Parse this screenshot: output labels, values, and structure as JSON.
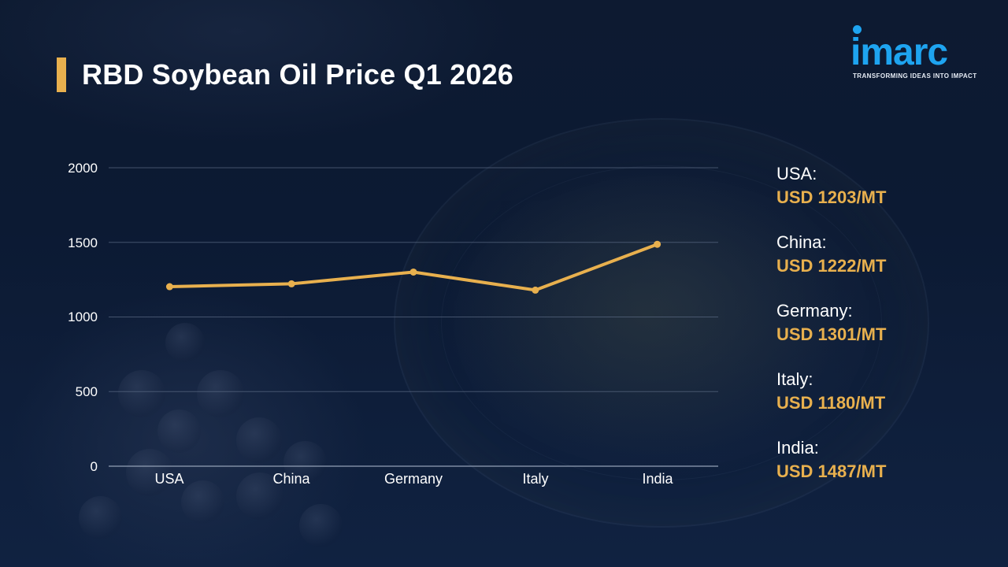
{
  "title": "RBD Soybean Oil Price Q1 2026",
  "logo": {
    "wordmark": "imarc",
    "tagline": "TRANSFORMING IDEAS INTO IMPACT"
  },
  "colors": {
    "background": "#0f1d35",
    "accent": "#e8b04e",
    "line": "#e8b04e",
    "logo": "#1ea4f0",
    "gridline": "#5b6a84"
  },
  "chart_data": {
    "type": "line",
    "title": "RBD Soybean Oil Price Q1 2026",
    "xlabel": "",
    "ylabel": "",
    "categories": [
      "USA",
      "China",
      "Germany",
      "Italy",
      "India"
    ],
    "series": [
      {
        "name": "Price (USD/MT)",
        "values": [
          1203,
          1222,
          1301,
          1180,
          1487
        ]
      }
    ],
    "ylim": [
      0,
      2000
    ],
    "yticks": [
      0,
      500,
      1000,
      1500,
      2000
    ],
    "ytick_labels": [
      "0",
      "500",
      "1000",
      "1500",
      "2000"
    ],
    "grid": true,
    "legend_position": "none",
    "markers": true
  },
  "legend": {
    "items": [
      {
        "country": "USA:",
        "value": "USD 1203/MT"
      },
      {
        "country": "China:",
        "value": "USD 1222/MT"
      },
      {
        "country": "Germany:",
        "value": "USD 1301/MT"
      },
      {
        "country": "Italy:",
        "value": "USD 1180/MT"
      },
      {
        "country": "India:",
        "value": "USD 1487/MT"
      }
    ]
  }
}
